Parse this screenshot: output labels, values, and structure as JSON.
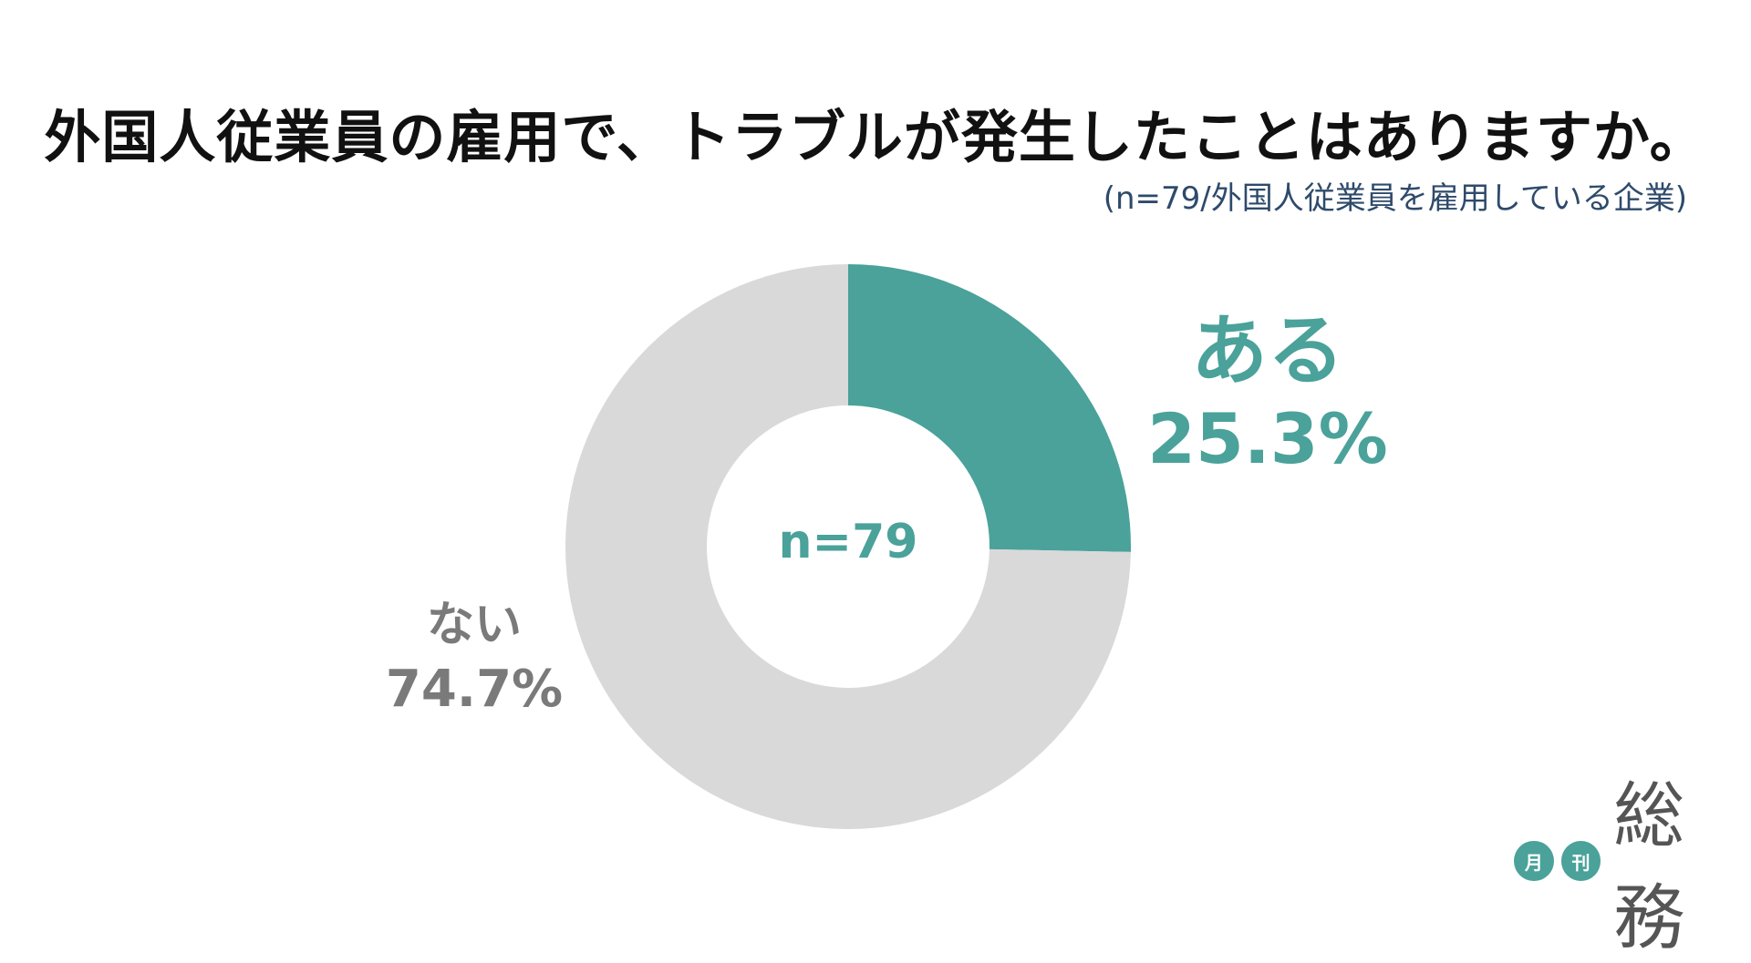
{
  "title": "外国人従業員の雇用で、トラブルが発生したことはありますか。",
  "subtitle": "(n=79/外国人従業員を雇用している企業)",
  "center_label": "n=79",
  "colors": {
    "aru": "#4aa29a",
    "nai": "#d9d9d9",
    "nai_label": "#7a7a7a"
  },
  "labels": {
    "aru": {
      "category": "ある",
      "percent": "25.3%"
    },
    "nai": {
      "category": "ない",
      "percent": "74.7%"
    }
  },
  "logo": {
    "badge1": "月",
    "badge2": "刊",
    "main": "総務"
  },
  "chart_data": {
    "type": "pie",
    "donut": true,
    "n": 79,
    "categories": [
      "ある",
      "ない"
    ],
    "values": [
      25.3,
      74.7
    ],
    "unit": "%",
    "start_angle": "12 o'clock",
    "direction": "clockwise"
  }
}
